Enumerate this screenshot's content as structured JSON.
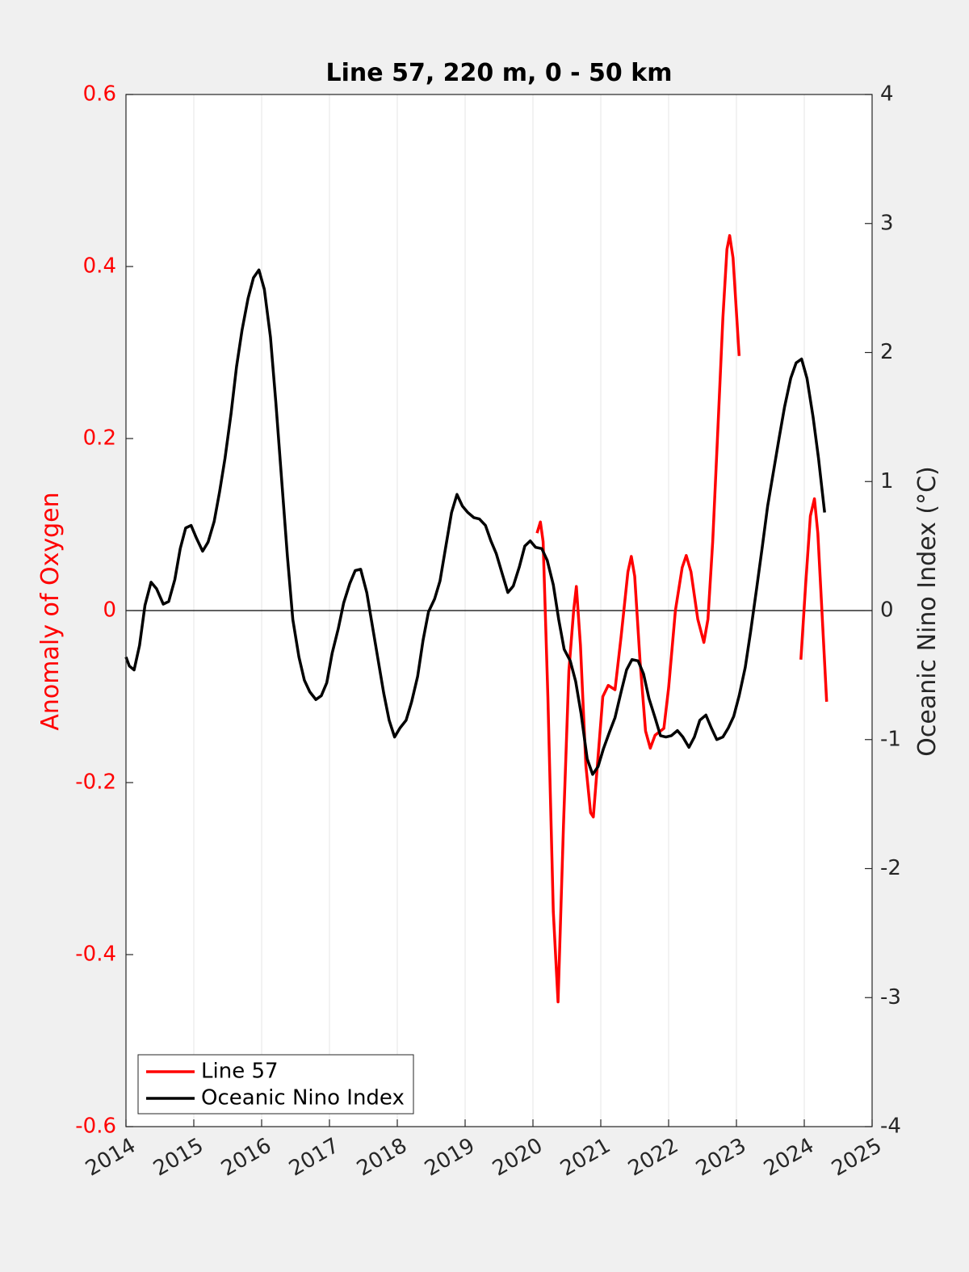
{
  "chart_data": {
    "type": "line",
    "title": "Line 57, 220 m, 0 - 50 km",
    "ylabel": "Anomaly of Oxygen",
    "y2label": "Oceanic Nino Index (°C)",
    "xlim": [
      2014,
      2025
    ],
    "xticks": [
      2014,
      2015,
      2016,
      2017,
      2018,
      2019,
      2020,
      2021,
      2022,
      2023,
      2024,
      2025
    ],
    "ylim": [
      -0.6,
      0.6
    ],
    "yticks": [
      -0.6,
      -0.4,
      -0.2,
      0,
      0.2,
      0.4,
      0.6
    ],
    "y2lim": [
      -4,
      4
    ],
    "y2ticks": [
      -4,
      -3,
      -2,
      -1,
      0,
      1,
      2,
      3,
      4
    ],
    "xgrid": true,
    "zero_line": true,
    "legend": "lower left",
    "ylabel_color": "#ff0000",
    "series": [
      {
        "name": "Line 57",
        "color": "#ff0000",
        "axis": "y",
        "x": [
          2020.06,
          2020.11,
          2020.15,
          2020.22,
          2020.3,
          2020.37,
          2020.45,
          2020.53,
          2020.6,
          2020.64,
          2020.7,
          2020.78,
          2020.85,
          2020.89,
          2020.95,
          2021.03,
          2021.11,
          2021.21,
          2021.3,
          2021.4,
          2021.45,
          2021.5,
          2021.58,
          2021.66,
          2021.73,
          2021.8,
          2021.93,
          2022.0,
          2022.1,
          2022.2,
          2022.26,
          2022.33,
          2022.43,
          2022.52,
          2022.58,
          2022.65,
          2022.72,
          2022.8,
          2022.86,
          2022.9,
          2022.95,
          2023.04,
          2023.5,
          2023.95,
          2024.02,
          2024.09,
          2024.15,
          2024.2,
          2024.26,
          2024.33
        ],
        "values": [
          0.09,
          0.103,
          0.08,
          -0.1,
          -0.35,
          -0.455,
          -0.25,
          -0.07,
          0.0,
          0.028,
          -0.04,
          -0.18,
          -0.235,
          -0.24,
          -0.18,
          -0.1,
          -0.087,
          -0.092,
          -0.03,
          0.045,
          0.063,
          0.04,
          -0.06,
          -0.14,
          -0.16,
          -0.145,
          -0.137,
          -0.09,
          0.0,
          0.05,
          0.064,
          0.045,
          -0.01,
          -0.037,
          -0.01,
          0.08,
          0.2,
          0.34,
          0.42,
          0.436,
          0.41,
          0.296,
          null,
          -0.057,
          0.03,
          0.11,
          0.13,
          0.09,
          0.0,
          -0.106
        ]
      },
      {
        "name": "Oceanic Nino Index",
        "color": "#000000",
        "axis": "y2",
        "x": [
          2014.0,
          2014.05,
          2014.12,
          2014.2,
          2014.28,
          2014.37,
          2014.45,
          2014.55,
          2014.63,
          2014.72,
          2014.8,
          2014.88,
          2014.96,
          2015.04,
          2015.13,
          2015.21,
          2015.3,
          2015.38,
          2015.46,
          2015.55,
          2015.63,
          2015.71,
          2015.8,
          2015.88,
          2015.96,
          2016.04,
          2016.13,
          2016.21,
          2016.3,
          2016.38,
          2016.46,
          2016.55,
          2016.63,
          2016.71,
          2016.8,
          2016.88,
          2016.96,
          2017.04,
          2017.13,
          2017.21,
          2017.3,
          2017.38,
          2017.46,
          2017.55,
          2017.63,
          2017.71,
          2017.8,
          2017.88,
          2017.96,
          2018.04,
          2018.13,
          2018.21,
          2018.3,
          2018.38,
          2018.46,
          2018.55,
          2018.63,
          2018.71,
          2018.8,
          2018.88,
          2018.96,
          2019.04,
          2019.13,
          2019.21,
          2019.3,
          2019.38,
          2019.46,
          2019.55,
          2019.63,
          2019.71,
          2019.8,
          2019.88,
          2019.96,
          2020.04,
          2020.13,
          2020.21,
          2020.3,
          2020.38,
          2020.46,
          2020.55,
          2020.63,
          2020.71,
          2020.8,
          2020.88,
          2020.96,
          2021.04,
          2021.13,
          2021.21,
          2021.3,
          2021.38,
          2021.46,
          2021.55,
          2021.63,
          2021.71,
          2021.8,
          2021.88,
          2021.96,
          2022.04,
          2022.13,
          2022.21,
          2022.3,
          2022.38,
          2022.46,
          2022.55,
          2022.63,
          2022.71,
          2022.8,
          2022.88,
          2022.96,
          2023.04,
          2023.13,
          2023.21,
          2023.3,
          2023.38,
          2023.46,
          2023.55,
          2023.63,
          2023.71,
          2023.8,
          2023.88,
          2023.96,
          2024.04,
          2024.13,
          2024.21,
          2024.3
        ],
        "values": [
          -0.36,
          -0.43,
          -0.46,
          -0.27,
          0.04,
          0.22,
          0.17,
          0.05,
          0.07,
          0.24,
          0.48,
          0.64,
          0.66,
          0.56,
          0.46,
          0.53,
          0.69,
          0.92,
          1.18,
          1.53,
          1.89,
          2.17,
          2.42,
          2.58,
          2.64,
          2.49,
          2.12,
          1.61,
          0.98,
          0.42,
          -0.07,
          -0.36,
          -0.54,
          -0.63,
          -0.69,
          -0.66,
          -0.56,
          -0.33,
          -0.14,
          0.06,
          0.21,
          0.31,
          0.32,
          0.14,
          -0.11,
          -0.36,
          -0.64,
          -0.85,
          -0.98,
          -0.91,
          -0.85,
          -0.71,
          -0.51,
          -0.23,
          -0.01,
          0.09,
          0.23,
          0.48,
          0.76,
          0.9,
          0.81,
          0.76,
          0.72,
          0.71,
          0.66,
          0.54,
          0.44,
          0.28,
          0.14,
          0.19,
          0.34,
          0.5,
          0.54,
          0.49,
          0.48,
          0.39,
          0.2,
          -0.07,
          -0.3,
          -0.39,
          -0.55,
          -0.8,
          -1.15,
          -1.27,
          -1.21,
          -1.07,
          -0.94,
          -0.83,
          -0.63,
          -0.46,
          -0.38,
          -0.39,
          -0.49,
          -0.68,
          -0.83,
          -0.97,
          -0.98,
          -0.97,
          -0.93,
          -0.98,
          -1.06,
          -0.98,
          -0.85,
          -0.81,
          -0.91,
          -1.0,
          -0.98,
          -0.91,
          -0.82,
          -0.66,
          -0.44,
          -0.16,
          0.18,
          0.49,
          0.81,
          1.09,
          1.34,
          1.58,
          1.8,
          1.92,
          1.95,
          1.8,
          1.5,
          1.18,
          0.76
        ]
      }
    ]
  }
}
